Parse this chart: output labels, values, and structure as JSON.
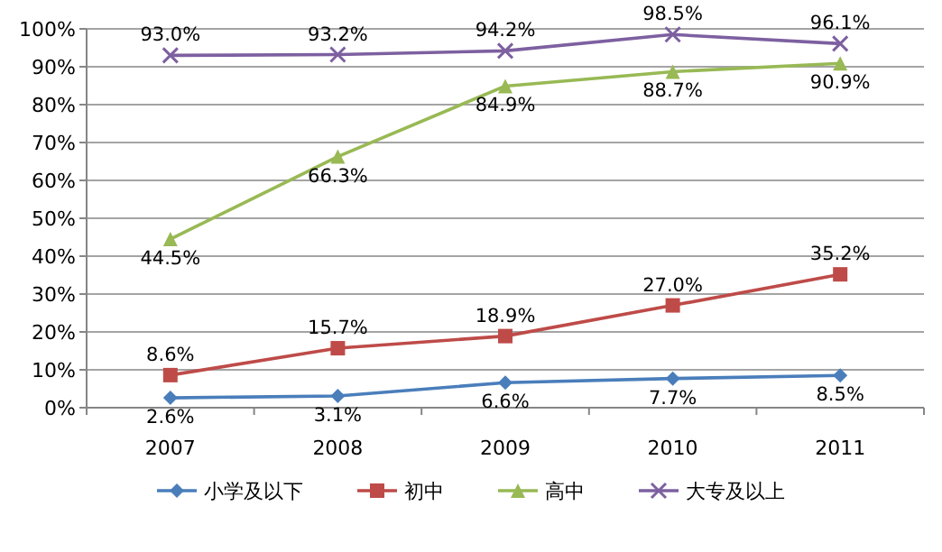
{
  "chart_data": {
    "type": "line",
    "categories": [
      "2007",
      "2008",
      "2009",
      "2010",
      "2011"
    ],
    "series": [
      {
        "name": "小学及以下",
        "color": "#4a7ebb",
        "marker": "diamond",
        "values": [
          2.6,
          3.1,
          6.6,
          7.7,
          8.5
        ],
        "value_labels": [
          "2.6%",
          "3.1%",
          "6.6%",
          "7.7%",
          "8.5%"
        ]
      },
      {
        "name": "初中",
        "color": "#be4b48",
        "marker": "square",
        "values": [
          8.6,
          15.7,
          18.9,
          27.0,
          35.2
        ],
        "value_labels": [
          "8.6%",
          "15.7%",
          "18.9%",
          "27.0%",
          "35.2%"
        ]
      },
      {
        "name": "高中",
        "color": "#98b954",
        "marker": "triangle",
        "values": [
          44.5,
          66.3,
          84.9,
          88.7,
          90.9
        ],
        "value_labels": [
          "44.5%",
          "66.3%",
          "84.9%",
          "88.7%",
          "90.9%"
        ]
      },
      {
        "name": "大专及以上",
        "color": "#7d60a0",
        "marker": "cross",
        "values": [
          93.0,
          93.2,
          94.2,
          98.5,
          96.1
        ],
        "value_labels": [
          "93.0%",
          "93.2%",
          "94.2%",
          "98.5%",
          "96.1%"
        ]
      }
    ],
    "ylim": [
      0,
      100
    ],
    "yticks": [
      {
        "value": 0,
        "label": "0%"
      },
      {
        "value": 10,
        "label": "10%"
      },
      {
        "value": 20,
        "label": "20%"
      },
      {
        "value": 30,
        "label": "30%"
      },
      {
        "value": 40,
        "label": "40%"
      },
      {
        "value": 50,
        "label": "50%"
      },
      {
        "value": 60,
        "label": "60%"
      },
      {
        "value": 70,
        "label": "70%"
      },
      {
        "value": 80,
        "label": "80%"
      },
      {
        "value": 90,
        "label": "90%"
      },
      {
        "value": 100,
        "label": "100%"
      }
    ],
    "grid": "y",
    "legend": "bottom"
  }
}
